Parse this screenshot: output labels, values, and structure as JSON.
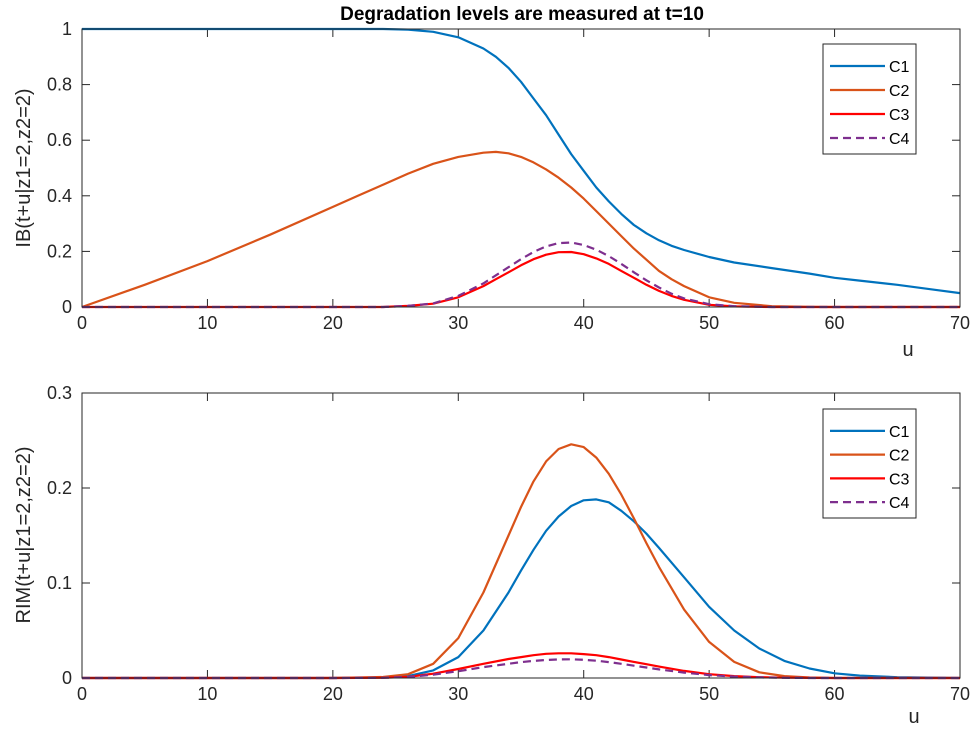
{
  "chart_data": [
    {
      "type": "line",
      "title": "Degradation levels are measured at t=10",
      "xlabel": "u",
      "ylabel": "IB(t+u|z1=2,z2=2)",
      "xlim": [
        0,
        70
      ],
      "ylim": [
        0,
        1
      ],
      "xticks": [
        "0",
        "10",
        "20",
        "30",
        "40",
        "50",
        "60",
        "70"
      ],
      "yticks": [
        "0",
        "0.2",
        "0.4",
        "0.6",
        "0.8",
        "1"
      ],
      "grid": false,
      "legend_position": "top-right",
      "x": [
        0,
        5,
        10,
        15,
        20,
        22,
        24,
        26,
        28,
        30,
        32,
        33,
        34,
        35,
        36,
        37,
        38,
        39,
        40,
        41,
        42,
        43,
        44,
        45,
        46,
        47,
        48,
        50,
        52,
        55,
        58,
        60,
        62,
        65,
        68,
        70
      ],
      "series": [
        {
          "name": "C1",
          "color": "#0072BD",
          "dash": "solid",
          "values": [
            1.0,
            1.0,
            1.0,
            1.0,
            1.0,
            1.0,
            1.0,
            0.998,
            0.99,
            0.97,
            0.93,
            0.9,
            0.86,
            0.81,
            0.75,
            0.69,
            0.62,
            0.55,
            0.49,
            0.43,
            0.38,
            0.335,
            0.295,
            0.265,
            0.24,
            0.22,
            0.205,
            0.18,
            0.16,
            0.14,
            0.12,
            0.105,
            0.095,
            0.08,
            0.062,
            0.05
          ]
        },
        {
          "name": "C2",
          "color": "#D95319",
          "dash": "solid",
          "values": [
            0.0,
            0.08,
            0.165,
            0.26,
            0.36,
            0.4,
            0.44,
            0.48,
            0.515,
            0.54,
            0.555,
            0.558,
            0.553,
            0.54,
            0.52,
            0.495,
            0.465,
            0.43,
            0.39,
            0.345,
            0.3,
            0.255,
            0.21,
            0.17,
            0.13,
            0.1,
            0.075,
            0.035,
            0.015,
            0.003,
            0.0005,
            0.0,
            0.0,
            0.0,
            0.0,
            0.0
          ]
        },
        {
          "name": "C3",
          "color": "#FF0000",
          "dash": "solid",
          "values": [
            0.0,
            0.0,
            0.0,
            0.0,
            0.0,
            0.0,
            0.0,
            0.004,
            0.012,
            0.035,
            0.075,
            0.1,
            0.125,
            0.15,
            0.172,
            0.188,
            0.197,
            0.198,
            0.19,
            0.175,
            0.155,
            0.13,
            0.105,
            0.08,
            0.058,
            0.04,
            0.026,
            0.008,
            0.002,
            0.0,
            0.0,
            0.0,
            0.0,
            0.0,
            0.0,
            0.0
          ]
        },
        {
          "name": "C4",
          "color": "#7E2F8E",
          "dash": "dashed",
          "values": [
            0.0,
            0.0,
            0.0,
            0.0,
            0.0,
            0.0,
            0.0,
            0.004,
            0.013,
            0.04,
            0.085,
            0.114,
            0.143,
            0.172,
            0.198,
            0.218,
            0.23,
            0.232,
            0.223,
            0.206,
            0.183,
            0.155,
            0.125,
            0.096,
            0.07,
            0.048,
            0.031,
            0.01,
            0.003,
            0.0,
            0.0,
            0.0,
            0.0,
            0.0,
            0.0,
            0.0
          ]
        }
      ]
    },
    {
      "type": "line",
      "title": "",
      "xlabel": "u",
      "ylabel": "RIM(t+u|z1=2,z2=2)",
      "xlim": [
        0,
        70
      ],
      "ylim": [
        0,
        0.3
      ],
      "xticks": [
        "0",
        "10",
        "20",
        "30",
        "40",
        "50",
        "60",
        "70"
      ],
      "yticks": [
        "0",
        "0.1",
        "0.2",
        "0.3"
      ],
      "grid": false,
      "legend_position": "top-right",
      "x": [
        0,
        10,
        20,
        24,
        26,
        28,
        30,
        32,
        34,
        35,
        36,
        37,
        38,
        39,
        40,
        41,
        42,
        43,
        44,
        45,
        46,
        48,
        50,
        52,
        54,
        56,
        58,
        60,
        62,
        65,
        70
      ],
      "series": [
        {
          "name": "C1",
          "color": "#0072BD",
          "dash": "solid",
          "values": [
            0.0,
            0.0,
            0.0,
            0.0005,
            0.002,
            0.008,
            0.022,
            0.05,
            0.09,
            0.113,
            0.135,
            0.155,
            0.17,
            0.181,
            0.187,
            0.188,
            0.185,
            0.176,
            0.165,
            0.152,
            0.137,
            0.106,
            0.075,
            0.05,
            0.031,
            0.018,
            0.01,
            0.005,
            0.0025,
            0.0008,
            0.0
          ]
        },
        {
          "name": "C2",
          "color": "#D95319",
          "dash": "solid",
          "values": [
            0.0,
            0.0,
            0.0,
            0.001,
            0.004,
            0.015,
            0.042,
            0.09,
            0.15,
            0.18,
            0.207,
            0.228,
            0.241,
            0.246,
            0.243,
            0.232,
            0.215,
            0.193,
            0.168,
            0.142,
            0.117,
            0.072,
            0.038,
            0.017,
            0.006,
            0.002,
            0.0005,
            0.0,
            0.0,
            0.0,
            0.0
          ]
        },
        {
          "name": "C3",
          "color": "#FF0000",
          "dash": "solid",
          "values": [
            0.0,
            0.0,
            0.0,
            0.0002,
            0.0012,
            0.0045,
            0.0095,
            0.015,
            0.02,
            0.022,
            0.024,
            0.0255,
            0.026,
            0.026,
            0.0252,
            0.024,
            0.022,
            0.0195,
            0.017,
            0.0145,
            0.012,
            0.0075,
            0.004,
            0.002,
            0.0008,
            0.0003,
            0.0001,
            0.0,
            0.0,
            0.0,
            0.0
          ]
        },
        {
          "name": "C4",
          "color": "#7E2F8E",
          "dash": "dashed",
          "values": [
            0.0,
            0.0,
            0.0,
            0.0002,
            0.001,
            0.0035,
            0.0072,
            0.0115,
            0.015,
            0.0167,
            0.018,
            0.019,
            0.0196,
            0.0197,
            0.0192,
            0.0182,
            0.0167,
            0.0149,
            0.0129,
            0.011,
            0.0091,
            0.0057,
            0.003,
            0.0015,
            0.0006,
            0.0002,
            0.0,
            0.0,
            0.0,
            0.0,
            0.0
          ]
        }
      ]
    }
  ]
}
